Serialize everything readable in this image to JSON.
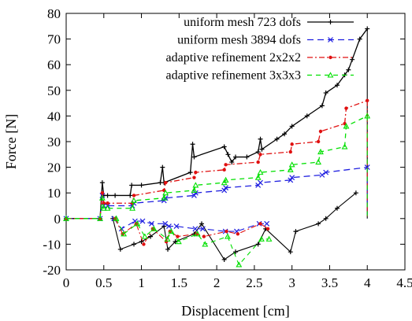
{
  "chart_data": {
    "type": "line",
    "title": "",
    "xlabel": "Displacement [cm]",
    "ylabel": "Force [N]",
    "xlim": [
      0,
      4.5
    ],
    "ylim": [
      -20,
      80
    ],
    "xticks": [
      0,
      0.5,
      1,
      1.5,
      2,
      2.5,
      3,
      3.5,
      4,
      4.5
    ],
    "xtick_labels": [
      "0",
      "0.5",
      "1",
      "1.5",
      "2",
      "2.5",
      "3",
      "3.5",
      "4",
      "4.5"
    ],
    "yticks": [
      -20,
      -10,
      0,
      10,
      20,
      30,
      40,
      50,
      60,
      70,
      80
    ],
    "ytick_labels": [
      "-20",
      "-10",
      "0",
      "10",
      "20",
      "30",
      "40",
      "50",
      "60",
      "70",
      "80"
    ],
    "grid": false,
    "legend_position": "top-right",
    "series": [
      {
        "name": "uniform mesh 723 dofs",
        "color": "#000000",
        "dash": "",
        "marker": "plus",
        "x": [
          0,
          0.45,
          0.48,
          0.5,
          0.55,
          0.65,
          0.85,
          0.87,
          1.0,
          1.25,
          1.28,
          1.3,
          1.65,
          1.68,
          1.7,
          2.1,
          2.15,
          2.2,
          2.25,
          2.4,
          2.55,
          2.58,
          2.6,
          2.8,
          2.9,
          3.0,
          3.2,
          3.4,
          3.45,
          3.6,
          3.7,
          3.75,
          3.8,
          3.9,
          4.0
        ],
        "y": [
          0,
          0,
          14,
          9,
          9,
          9,
          9,
          13,
          13,
          14,
          20,
          14,
          18,
          29,
          24,
          28,
          25,
          22,
          24,
          24,
          26,
          31,
          27,
          31,
          33,
          36,
          40,
          44,
          49,
          52,
          56,
          58,
          62,
          70,
          74
        ],
        "unload_y": [
          0,
          -12,
          -10,
          -9,
          -7,
          -3,
          -12,
          -9,
          -6,
          -2,
          -16,
          -13,
          -10,
          -4,
          -13,
          -5,
          -2,
          0,
          4,
          10
        ]
      },
      {
        "name": "uniform mesh 3894 dofs",
        "color": "#1f1fe0",
        "dash": "8,5",
        "marker": "cross",
        "x": [
          0,
          0.45,
          0.48,
          0.5,
          0.55,
          0.88,
          0.9,
          1.3,
          1.32,
          1.7,
          1.72,
          2.1,
          2.12,
          2.55,
          2.58,
          2.98,
          3.0,
          3.4,
          3.45,
          4.0
        ],
        "y": [
          0,
          0,
          9,
          5,
          5,
          5,
          6,
          7,
          8,
          9,
          10,
          11,
          12,
          13,
          14,
          15,
          16,
          17,
          18,
          20
        ],
        "unload_y": [
          0,
          -4,
          -1,
          -1,
          -2,
          -2,
          -3,
          -3,
          -4,
          -4,
          -5,
          -5,
          -2,
          -2
        ]
      },
      {
        "name": "adaptive refinement 2x2x2",
        "color": "#e01010",
        "dash": "7,3,2,3",
        "marker": "dot",
        "x": [
          0,
          0.45,
          0.48,
          0.5,
          0.55,
          0.88,
          0.9,
          1.3,
          1.32,
          1.7,
          1.72,
          2.1,
          2.12,
          2.55,
          2.58,
          2.98,
          3.0,
          3.35,
          3.38,
          3.7,
          3.72,
          4.0
        ],
        "y": [
          0,
          0,
          10,
          6,
          6,
          6,
          9,
          11,
          14,
          16,
          18,
          19,
          21,
          22,
          25,
          26,
          29,
          30,
          34,
          37,
          43,
          46
        ],
        "unload_y": [
          0,
          -6,
          -2,
          -10,
          -4,
          -9,
          -5,
          -7,
          -6,
          -7,
          -5,
          -6,
          -2,
          -4
        ]
      },
      {
        "name": "adaptive refinement 3x3x3",
        "color": "#00e000",
        "dash": "6,5",
        "marker": "triangle",
        "x": [
          0,
          0.45,
          0.48,
          0.5,
          0.55,
          0.88,
          0.9,
          1.3,
          1.32,
          1.7,
          1.72,
          2.1,
          2.12,
          2.55,
          2.58,
          2.98,
          3.0,
          3.35,
          3.38,
          3.7,
          3.72,
          4.0
        ],
        "y": [
          0,
          0,
          8,
          4,
          4,
          4,
          7,
          8,
          10,
          11,
          13,
          14,
          15,
          16,
          18,
          19,
          21,
          22,
          26,
          28,
          36,
          40
        ],
        "unload_y": [
          0,
          -6,
          -2,
          -7,
          -4,
          -8,
          -5,
          -9,
          -6,
          -10,
          -7,
          -18,
          -8,
          -8
        ]
      }
    ]
  }
}
